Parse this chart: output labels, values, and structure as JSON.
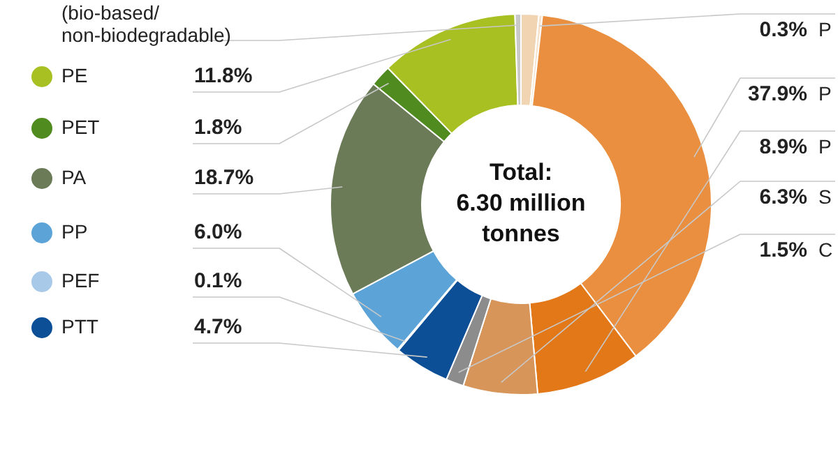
{
  "chart_data": {
    "type": "donut",
    "categories": [
      null,
      "P",
      "P",
      "P",
      "S",
      "C",
      "PTT",
      "PEF",
      "PP",
      "PA",
      "PET",
      "PE",
      "(bio-based/\nnon-biodegradable)"
    ],
    "values": [
      1.5,
      0.3,
      37.9,
      8.9,
      6.3,
      1.5,
      4.7,
      0.1,
      6.0,
      18.7,
      1.8,
      11.8,
      0.5
    ],
    "colors": [
      "#f1d5b2",
      "#f6e2cc",
      "#e98f3f",
      "#e27818",
      "#d8955a",
      "#8c8c8c",
      "#0c4f97",
      "#a9c9e9",
      "#5ca4d8",
      "#6b7b58",
      "#4f8b1f",
      "#a9c022",
      "#c9c9c9"
    ],
    "value_labels": [
      null,
      "0.3%",
      "37.9%",
      "8.9%",
      "6.3%",
      "1.5%",
      "4.7%",
      "0.1%",
      "6.0%",
      "18.7%",
      "1.8%",
      "11.8%",
      null
    ],
    "legend": "left",
    "annotations": [
      "Total:\n6.30 million\ntonnes"
    ]
  }
}
